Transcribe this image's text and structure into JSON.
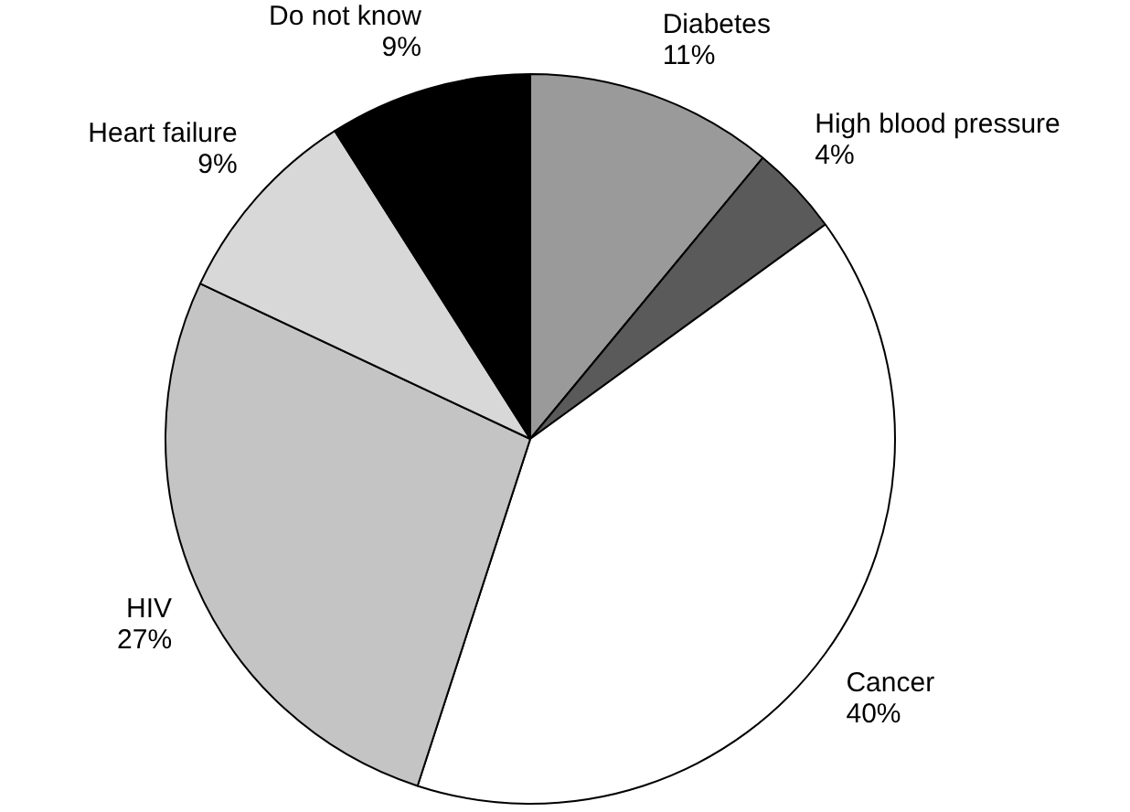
{
  "chart_data": {
    "type": "pie",
    "categories": [
      "Diabetes",
      "High blood pressure",
      "Cancer",
      "HIV",
      "Heart failure",
      "Do not know"
    ],
    "values": [
      11,
      4,
      40,
      27,
      9,
      9
    ],
    "value_labels": [
      "11%",
      "4%",
      "40%",
      "27%",
      "9%",
      "9%"
    ],
    "colors": [
      "#9a9a9a",
      "#5a5a5a",
      "#ffffff",
      "#c4c4c4",
      "#d8d8d8",
      "#000000"
    ],
    "legend": false
  }
}
